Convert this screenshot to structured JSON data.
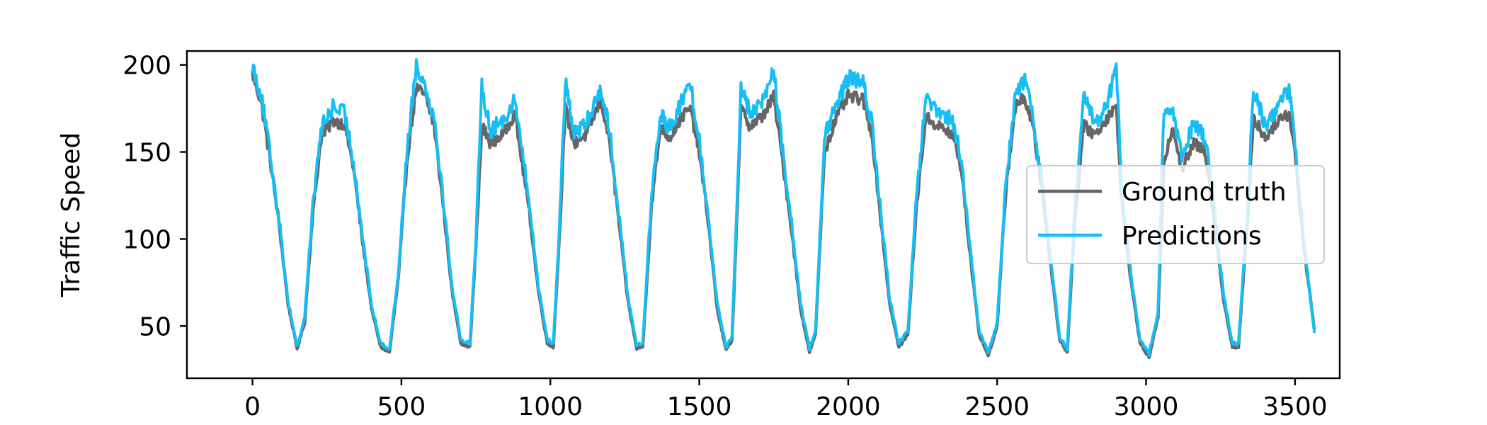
{
  "chart_data": {
    "type": "line",
    "title": "",
    "xlabel": "",
    "ylabel": "Traffic Speed",
    "xlim": [
      -220,
      3650
    ],
    "ylim": [
      20,
      208
    ],
    "xticks": [
      0,
      500,
      1000,
      1500,
      2000,
      2500,
      3000,
      3500
    ],
    "yticks": [
      50,
      100,
      150,
      200
    ],
    "grid": false,
    "legend_position": "center-right",
    "x_range": [
      0,
      3565
    ],
    "series": [
      {
        "name": "Ground truth",
        "color": "#666666",
        "points": [
          [
            0,
            195
          ],
          [
            30,
            178
          ],
          [
            60,
            145
          ],
          [
            90,
            108
          ],
          [
            120,
            62
          ],
          [
            150,
            37
          ],
          [
            175,
            52
          ],
          [
            200,
            110
          ],
          [
            230,
            158
          ],
          [
            270,
            168
          ],
          [
            310,
            166
          ],
          [
            340,
            140
          ],
          [
            370,
            98
          ],
          [
            400,
            60
          ],
          [
            430,
            38
          ],
          [
            460,
            35
          ],
          [
            490,
            78
          ],
          [
            520,
            148
          ],
          [
            550,
            187
          ],
          [
            580,
            182
          ],
          [
            610,
            165
          ],
          [
            640,
            120
          ],
          [
            670,
            70
          ],
          [
            700,
            40
          ],
          [
            730,
            38
          ],
          [
            750,
            95
          ],
          [
            770,
            165
          ],
          [
            800,
            155
          ],
          [
            840,
            160
          ],
          [
            880,
            172
          ],
          [
            900,
            150
          ],
          [
            930,
            115
          ],
          [
            960,
            70
          ],
          [
            990,
            40
          ],
          [
            1010,
            38
          ],
          [
            1030,
            100
          ],
          [
            1050,
            175
          ],
          [
            1080,
            155
          ],
          [
            1120,
            160
          ],
          [
            1170,
            180
          ],
          [
            1200,
            155
          ],
          [
            1230,
            110
          ],
          [
            1260,
            65
          ],
          [
            1290,
            37
          ],
          [
            1310,
            38
          ],
          [
            1340,
            120
          ],
          [
            1370,
            165
          ],
          [
            1400,
            158
          ],
          [
            1440,
            170
          ],
          [
            1470,
            175
          ],
          [
            1500,
            150
          ],
          [
            1530,
            110
          ],
          [
            1560,
            60
          ],
          [
            1590,
            36
          ],
          [
            1610,
            42
          ],
          [
            1640,
            175
          ],
          [
            1670,
            165
          ],
          [
            1710,
            170
          ],
          [
            1750,
            182
          ],
          [
            1780,
            145
          ],
          [
            1810,
            105
          ],
          [
            1840,
            60
          ],
          [
            1870,
            35
          ],
          [
            1890,
            45
          ],
          [
            1920,
            150
          ],
          [
            1960,
            170
          ],
          [
            2000,
            182
          ],
          [
            2050,
            180
          ],
          [
            2080,
            160
          ],
          [
            2110,
            110
          ],
          [
            2140,
            62
          ],
          [
            2170,
            38
          ],
          [
            2200,
            45
          ],
          [
            2230,
            120
          ],
          [
            2260,
            170
          ],
          [
            2300,
            165
          ],
          [
            2350,
            160
          ],
          [
            2380,
            140
          ],
          [
            2410,
            90
          ],
          [
            2440,
            45
          ],
          [
            2470,
            33
          ],
          [
            2500,
            50
          ],
          [
            2530,
            130
          ],
          [
            2560,
            175
          ],
          [
            2590,
            182
          ],
          [
            2620,
            165
          ],
          [
            2650,
            130
          ],
          [
            2680,
            85
          ],
          [
            2710,
            42
          ],
          [
            2735,
            35
          ],
          [
            2760,
            110
          ],
          [
            2790,
            165
          ],
          [
            2830,
            160
          ],
          [
            2870,
            170
          ],
          [
            2900,
            175
          ],
          [
            2920,
            120
          ],
          [
            2950,
            75
          ],
          [
            2980,
            40
          ],
          [
            3010,
            32
          ],
          [
            3040,
            55
          ],
          [
            3060,
            145
          ],
          [
            3090,
            165
          ],
          [
            3120,
            140
          ],
          [
            3160,
            155
          ],
          [
            3200,
            150
          ],
          [
            3230,
            110
          ],
          [
            3260,
            65
          ],
          [
            3290,
            38
          ],
          [
            3310,
            38
          ],
          [
            3340,
            110
          ],
          [
            3360,
            170
          ],
          [
            3400,
            158
          ],
          [
            3440,
            168
          ],
          [
            3480,
            172
          ],
          [
            3500,
            150
          ],
          [
            3530,
            95
          ],
          [
            3565,
            48
          ]
        ]
      },
      {
        "name": "Predictions",
        "color": "#17BEF5",
        "points": [
          [
            0,
            200
          ],
          [
            30,
            182
          ],
          [
            60,
            148
          ],
          [
            90,
            110
          ],
          [
            120,
            64
          ],
          [
            150,
            38
          ],
          [
            175,
            55
          ],
          [
            200,
            114
          ],
          [
            230,
            163
          ],
          [
            270,
            176
          ],
          [
            310,
            172
          ],
          [
            340,
            144
          ],
          [
            370,
            101
          ],
          [
            400,
            62
          ],
          [
            430,
            40
          ],
          [
            460,
            37
          ],
          [
            490,
            81
          ],
          [
            520,
            154
          ],
          [
            550,
            200
          ],
          [
            580,
            188
          ],
          [
            610,
            170
          ],
          [
            640,
            124
          ],
          [
            670,
            73
          ],
          [
            700,
            42
          ],
          [
            730,
            40
          ],
          [
            750,
            98
          ],
          [
            770,
            188
          ],
          [
            800,
            162
          ],
          [
            840,
            168
          ],
          [
            880,
            180
          ],
          [
            900,
            158
          ],
          [
            930,
            119
          ],
          [
            960,
            73
          ],
          [
            990,
            42
          ],
          [
            1010,
            40
          ],
          [
            1030,
            104
          ],
          [
            1050,
            190
          ],
          [
            1080,
            160
          ],
          [
            1120,
            166
          ],
          [
            1170,
            187
          ],
          [
            1200,
            161
          ],
          [
            1230,
            114
          ],
          [
            1260,
            68
          ],
          [
            1290,
            39
          ],
          [
            1310,
            40
          ],
          [
            1340,
            126
          ],
          [
            1370,
            171
          ],
          [
            1400,
            164
          ],
          [
            1440,
            178
          ],
          [
            1470,
            190
          ],
          [
            1500,
            156
          ],
          [
            1530,
            114
          ],
          [
            1560,
            63
          ],
          [
            1590,
            38
          ],
          [
            1610,
            44
          ],
          [
            1640,
            188
          ],
          [
            1670,
            172
          ],
          [
            1710,
            178
          ],
          [
            1750,
            197
          ],
          [
            1780,
            150
          ],
          [
            1810,
            109
          ],
          [
            1840,
            63
          ],
          [
            1870,
            37
          ],
          [
            1890,
            47
          ],
          [
            1920,
            158
          ],
          [
            1960,
            176
          ],
          [
            2000,
            193
          ],
          [
            2050,
            189
          ],
          [
            2080,
            166
          ],
          [
            2110,
            114
          ],
          [
            2140,
            65
          ],
          [
            2170,
            40
          ],
          [
            2200,
            47
          ],
          [
            2230,
            126
          ],
          [
            2260,
            180
          ],
          [
            2300,
            172
          ],
          [
            2350,
            168
          ],
          [
            2380,
            145
          ],
          [
            2410,
            93
          ],
          [
            2440,
            47
          ],
          [
            2470,
            35
          ],
          [
            2500,
            52
          ],
          [
            2530,
            135
          ],
          [
            2560,
            181
          ],
          [
            2590,
            192
          ],
          [
            2620,
            170
          ],
          [
            2650,
            134
          ],
          [
            2680,
            88
          ],
          [
            2710,
            44
          ],
          [
            2735,
            37
          ],
          [
            2760,
            114
          ],
          [
            2790,
            181
          ],
          [
            2830,
            167
          ],
          [
            2870,
            178
          ],
          [
            2900,
            198
          ],
          [
            2920,
            124
          ],
          [
            2950,
            78
          ],
          [
            2980,
            42
          ],
          [
            3010,
            34
          ],
          [
            3040,
            58
          ],
          [
            3060,
            175
          ],
          [
            3090,
            172
          ],
          [
            3120,
            146
          ],
          [
            3160,
            168
          ],
          [
            3200,
            158
          ],
          [
            3230,
            115
          ],
          [
            3260,
            68
          ],
          [
            3290,
            40
          ],
          [
            3310,
            40
          ],
          [
            3340,
            115
          ],
          [
            3360,
            186
          ],
          [
            3400,
            165
          ],
          [
            3440,
            176
          ],
          [
            3480,
            186
          ],
          [
            3500,
            157
          ],
          [
            3530,
            98
          ],
          [
            3565,
            46
          ]
        ]
      }
    ]
  }
}
